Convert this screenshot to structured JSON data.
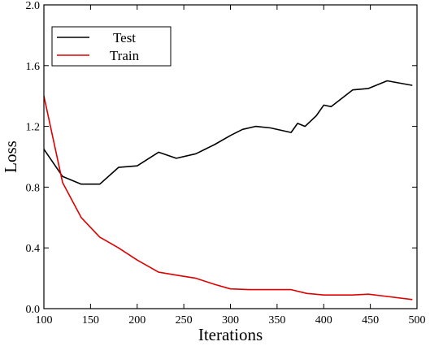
{
  "chart_data": {
    "type": "line",
    "title": "",
    "xlabel": "Iterations",
    "ylabel": "Loss",
    "xlim": [
      100,
      500
    ],
    "ylim": [
      0.0,
      2.0
    ],
    "xticks": [
      100,
      150,
      200,
      250,
      300,
      350,
      400,
      450,
      500
    ],
    "yticks": [
      0.0,
      0.4,
      0.8,
      1.2,
      1.6,
      2.0
    ],
    "ytick_labels": [
      "0.0",
      "0.4",
      "0.8",
      "1.2",
      "1.6",
      "2.0"
    ],
    "grid": false,
    "legend_position": "top-left",
    "series": [
      {
        "name": "Test",
        "color": "#000000",
        "x": [
          100,
          120,
          140,
          160,
          180,
          200,
          223,
          242,
          263,
          283,
          300,
          313,
          327,
          343,
          365,
          372,
          380,
          392,
          400,
          408,
          431,
          448,
          468,
          495
        ],
        "y": [
          1.05,
          0.87,
          0.82,
          0.82,
          0.93,
          0.94,
          1.03,
          0.99,
          1.02,
          1.08,
          1.14,
          1.18,
          1.2,
          1.19,
          1.16,
          1.22,
          1.2,
          1.27,
          1.34,
          1.33,
          1.44,
          1.45,
          1.5,
          1.47
        ]
      },
      {
        "name": "Train",
        "color": "#dd0000",
        "x": [
          100,
          120,
          140,
          160,
          166,
          180,
          200,
          223,
          243,
          263,
          283,
          300,
          320,
          343,
          365,
          382,
          400,
          408,
          431,
          448,
          468,
          495
        ],
        "y": [
          1.4,
          0.83,
          0.6,
          0.47,
          0.45,
          0.4,
          0.32,
          0.24,
          0.22,
          0.2,
          0.16,
          0.13,
          0.125,
          0.125,
          0.125,
          0.1,
          0.09,
          0.09,
          0.09,
          0.095,
          0.08,
          0.06
        ]
      }
    ]
  }
}
